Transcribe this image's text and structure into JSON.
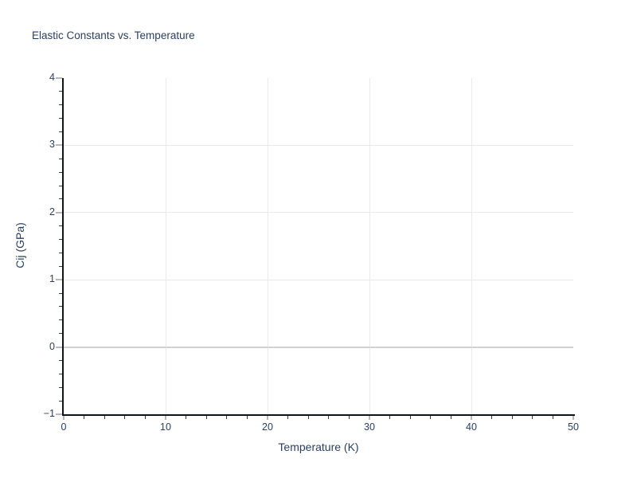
{
  "chart_data": {
    "type": "line",
    "title": "Elastic Constants vs. Temperature",
    "xlabel": "Temperature (K)",
    "ylabel": "Cij (GPa)",
    "xlim": [
      0,
      50
    ],
    "ylim": [
      -1,
      4
    ],
    "x_ticks": [
      0,
      10,
      20,
      30,
      40,
      50
    ],
    "x_tick_labels": [
      "0",
      "10",
      "20",
      "30",
      "40",
      "50"
    ],
    "y_ticks": [
      -1,
      0,
      1,
      2,
      3,
      4
    ],
    "y_tick_labels": [
      "−1",
      "0",
      "1",
      "2",
      "3",
      "4"
    ],
    "x_minor_tick_step": 2,
    "y_minor_tick_step": 0.2,
    "x_gridlines": [
      10,
      20,
      30,
      40
    ],
    "y_gridlines": [
      1,
      2,
      3
    ],
    "zeroline_y": 0,
    "grid": true,
    "legend": false,
    "series": []
  },
  "colors": {
    "background": "#ffffff",
    "text": "#2a3f5f",
    "axis_line": "#0f1419",
    "gridline": "#e9e9e9",
    "zeroline": "#d2d2d2",
    "major_tick": "#b9b9b9",
    "minor_tick": "#3a3a3a"
  }
}
